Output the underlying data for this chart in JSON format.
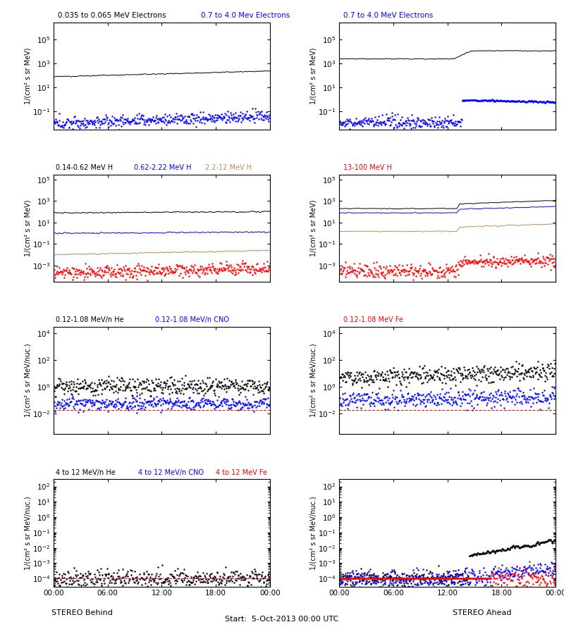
{
  "title_center": "Start:  5-Oct-2013 00:00 UTC",
  "xlabel_left": "STEREO Behind",
  "xlabel_right": "STEREO Ahead",
  "ylabels_elec": "1/(cm² s sr MeV)",
  "ylabels_H": "1/(cm² s sr MeV)",
  "ylabels_heavy": "1/(cm² s sr MeV/nuc.)",
  "ylim_row0": [
    0.003,
    3000000.0
  ],
  "ylim_row1": [
    3e-05,
    300000.0
  ],
  "ylim_row2": [
    0.0003,
    30000.0
  ],
  "ylim_row3": [
    3e-05,
    300.0
  ],
  "xtick_labels": [
    "00:00",
    "06:00",
    "12:00",
    "18:00",
    "00:00"
  ],
  "brown_color": "#BC8B60",
  "tan_color": "#BC8B60",
  "N": 400
}
